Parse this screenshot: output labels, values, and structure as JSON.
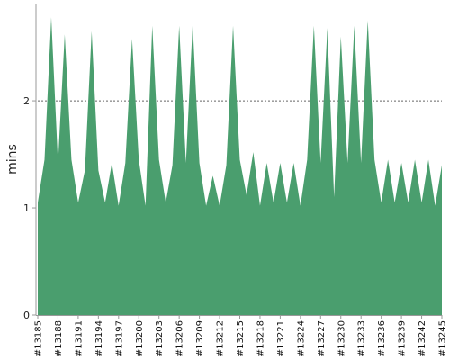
{
  "chart_data": {
    "type": "area",
    "ylabel": "mins",
    "xlabel": "",
    "title": "",
    "ylim": [
      0,
      2.9
    ],
    "yticks": [
      0,
      1,
      2
    ],
    "grid": "horizontal-dashed",
    "color": "#4a9e6e",
    "x": [
      "#13185",
      "#13186",
      "#13187",
      "#13188",
      "#13189",
      "#13190",
      "#13191",
      "#13192",
      "#13193",
      "#13194",
      "#13195",
      "#13196",
      "#13197",
      "#13198",
      "#13199",
      "#13200",
      "#13201",
      "#13202",
      "#13203",
      "#13204",
      "#13205",
      "#13206",
      "#13207",
      "#13208",
      "#13209",
      "#13210",
      "#13211",
      "#13212",
      "#13213",
      "#13214",
      "#13215",
      "#13216",
      "#13217",
      "#13218",
      "#13219",
      "#13220",
      "#13221",
      "#13222",
      "#13223",
      "#13224",
      "#13225",
      "#13226",
      "#13227",
      "#13228",
      "#13229",
      "#13230",
      "#13231",
      "#13232",
      "#13233",
      "#13234",
      "#13235",
      "#13236",
      "#13237",
      "#13238",
      "#13239",
      "#13240",
      "#13241",
      "#13242",
      "#13243",
      "#13244",
      "#13245"
    ],
    "x_tick_labels": [
      "#13185",
      "#13188",
      "#13191",
      "#13194",
      "#13197",
      "#13200",
      "#13203",
      "#13206",
      "#13209",
      "#13212",
      "#13215",
      "#13218",
      "#13221",
      "#13224",
      "#13227",
      "#13230",
      "#13233",
      "#13236",
      "#13239",
      "#13242",
      "#13245"
    ],
    "values": [
      1.05,
      1.45,
      2.78,
      1.42,
      2.62,
      1.45,
      1.05,
      1.35,
      2.65,
      1.35,
      1.05,
      1.42,
      1.02,
      1.42,
      2.58,
      1.45,
      1.02,
      2.7,
      1.45,
      1.05,
      1.4,
      2.7,
      1.42,
      2.72,
      1.42,
      1.02,
      1.3,
      1.02,
      1.4,
      2.7,
      1.45,
      1.12,
      1.52,
      1.02,
      1.42,
      1.05,
      1.42,
      1.05,
      1.42,
      1.02,
      1.45,
      2.7,
      1.42,
      2.68,
      1.1,
      2.6,
      1.42,
      2.7,
      1.42,
      2.75,
      1.45,
      1.05,
      1.45,
      1.05,
      1.42,
      1.05,
      1.45,
      1.05,
      1.45,
      1.02,
      1.4
    ]
  }
}
